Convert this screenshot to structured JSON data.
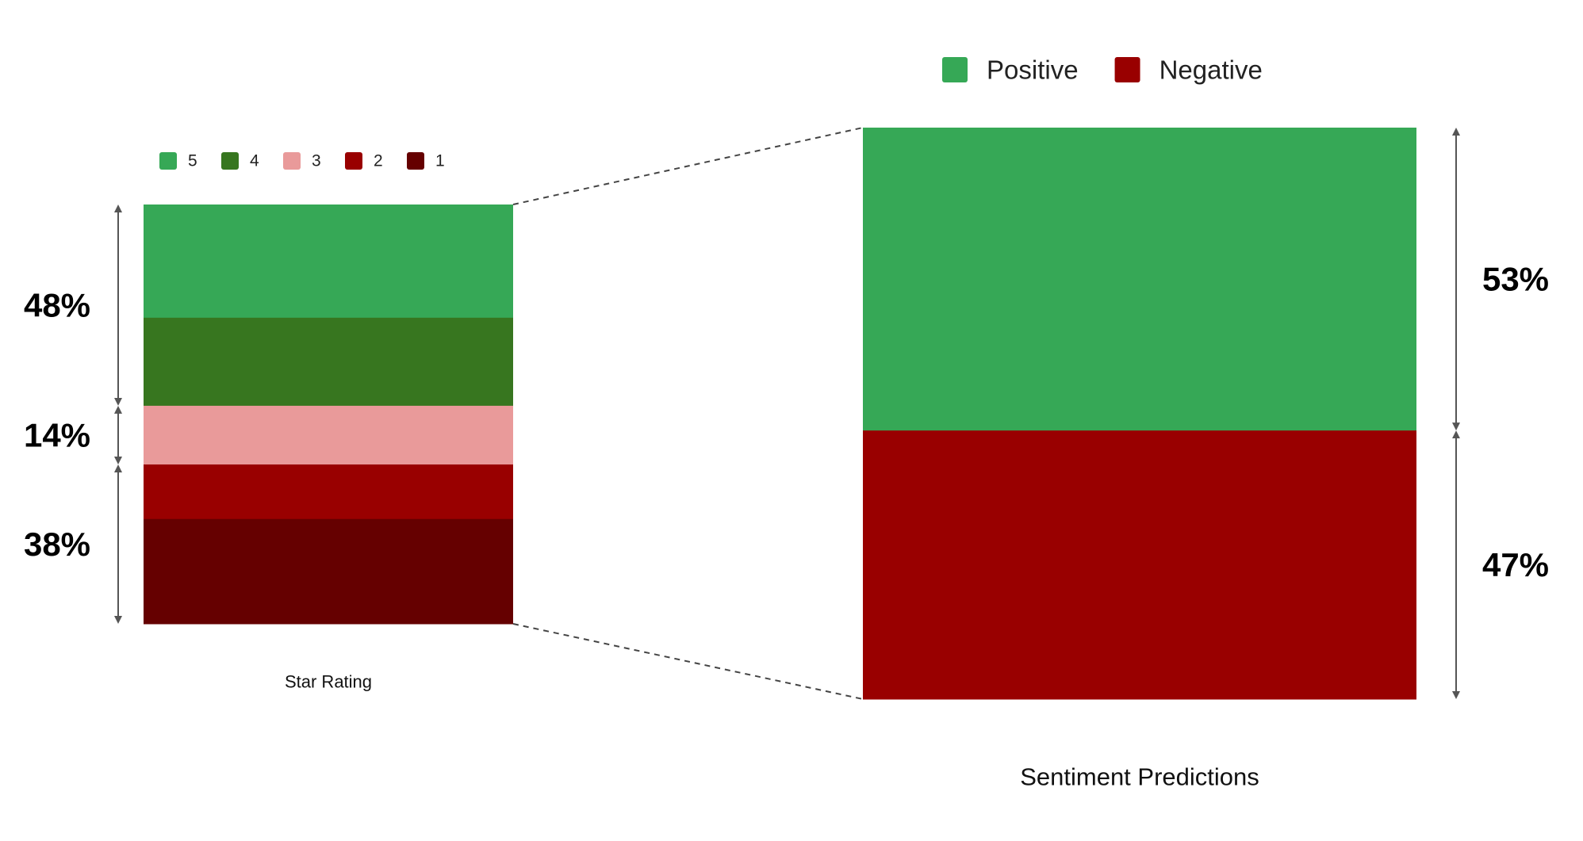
{
  "chart_data": [
    {
      "type": "bar",
      "stacked": true,
      "xlabel": "Star Rating",
      "series": [
        {
          "name": "5",
          "value": 27,
          "color": "#36a856"
        },
        {
          "name": "4",
          "value": 21,
          "color": "#37761f"
        },
        {
          "name": "3",
          "value": 14,
          "color": "#e99a9a"
        },
        {
          "name": "2",
          "value": 13,
          "color": "#990000"
        },
        {
          "name": "1",
          "value": 25,
          "color": "#650000"
        }
      ],
      "legend_position": "top",
      "group_labels": [
        {
          "text": "48%",
          "series": [
            "5",
            "4"
          ]
        },
        {
          "text": "14%",
          "series": [
            "3"
          ]
        },
        {
          "text": "38%",
          "series": [
            "2",
            "1"
          ]
        }
      ]
    },
    {
      "type": "bar",
      "stacked": true,
      "xlabel": "Sentiment Predictions",
      "series": [
        {
          "name": "Positive",
          "value": 53,
          "color": "#36a856"
        },
        {
          "name": "Negative",
          "value": 47,
          "color": "#990000"
        }
      ],
      "legend_position": "top",
      "group_labels": [
        {
          "text": "53%",
          "series": [
            "Positive"
          ]
        },
        {
          "text": "47%",
          "series": [
            "Negative"
          ]
        }
      ]
    }
  ]
}
